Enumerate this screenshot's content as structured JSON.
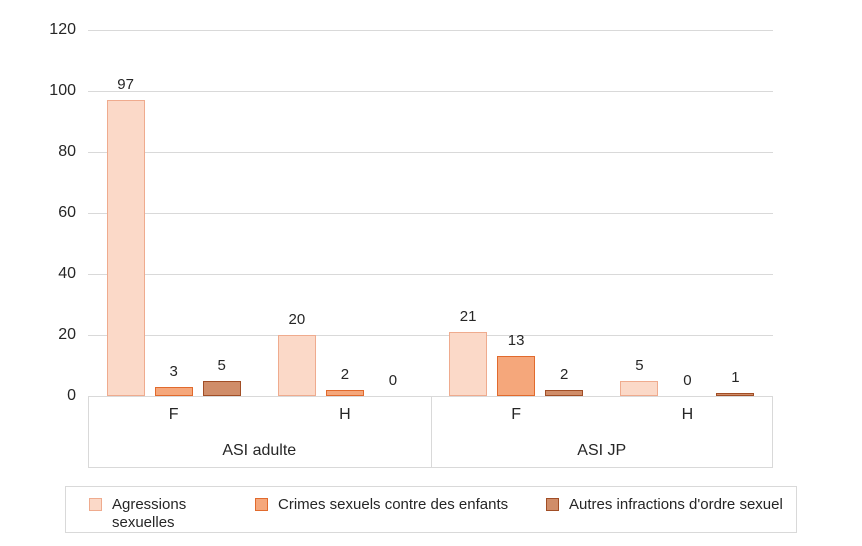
{
  "chart_data": {
    "type": "bar",
    "title": "",
    "xlabel": "",
    "ylabel": "",
    "ylim": [
      0,
      120
    ],
    "yticks": [
      0,
      20,
      40,
      60,
      80,
      100,
      120
    ],
    "grid": "horizontal",
    "data_labels": true,
    "legend_position": "bottom",
    "groups": [
      {
        "label": "ASI adulte",
        "subgroups": [
          "F",
          "H"
        ]
      },
      {
        "label": "ASI JP",
        "subgroups": [
          "F",
          "H"
        ]
      }
    ],
    "categories": [
      "ASI adulte F",
      "ASI adulte H",
      "ASI JP F",
      "ASI JP H"
    ],
    "series": [
      {
        "name": "Agressions sexuelles",
        "legend_label": "Agressions\nsexuelles",
        "values": [
          97,
          20,
          21,
          5
        ],
        "fill": "#fbd9c8",
        "border": "#efab8e"
      },
      {
        "name": "Crimes sexuels contre des enfants",
        "legend_label": "Crimes sexuels contre des enfants",
        "values": [
          3,
          2,
          13,
          0
        ],
        "fill": "#f5a77b",
        "border": "#e16a2d"
      },
      {
        "name": "Autres infractions d'ordre sexuel",
        "legend_label": "Autres infractions d'ordre sexuel",
        "values": [
          5,
          0,
          2,
          1
        ],
        "fill": "#d08d69",
        "border": "#a14e26"
      }
    ]
  },
  "colors": {
    "background": "#ffffff",
    "gridline": "#d9d9d9",
    "axis_box_border": "#d9d9d9",
    "text": "#262626",
    "legend_border": "#d9d9d9"
  }
}
